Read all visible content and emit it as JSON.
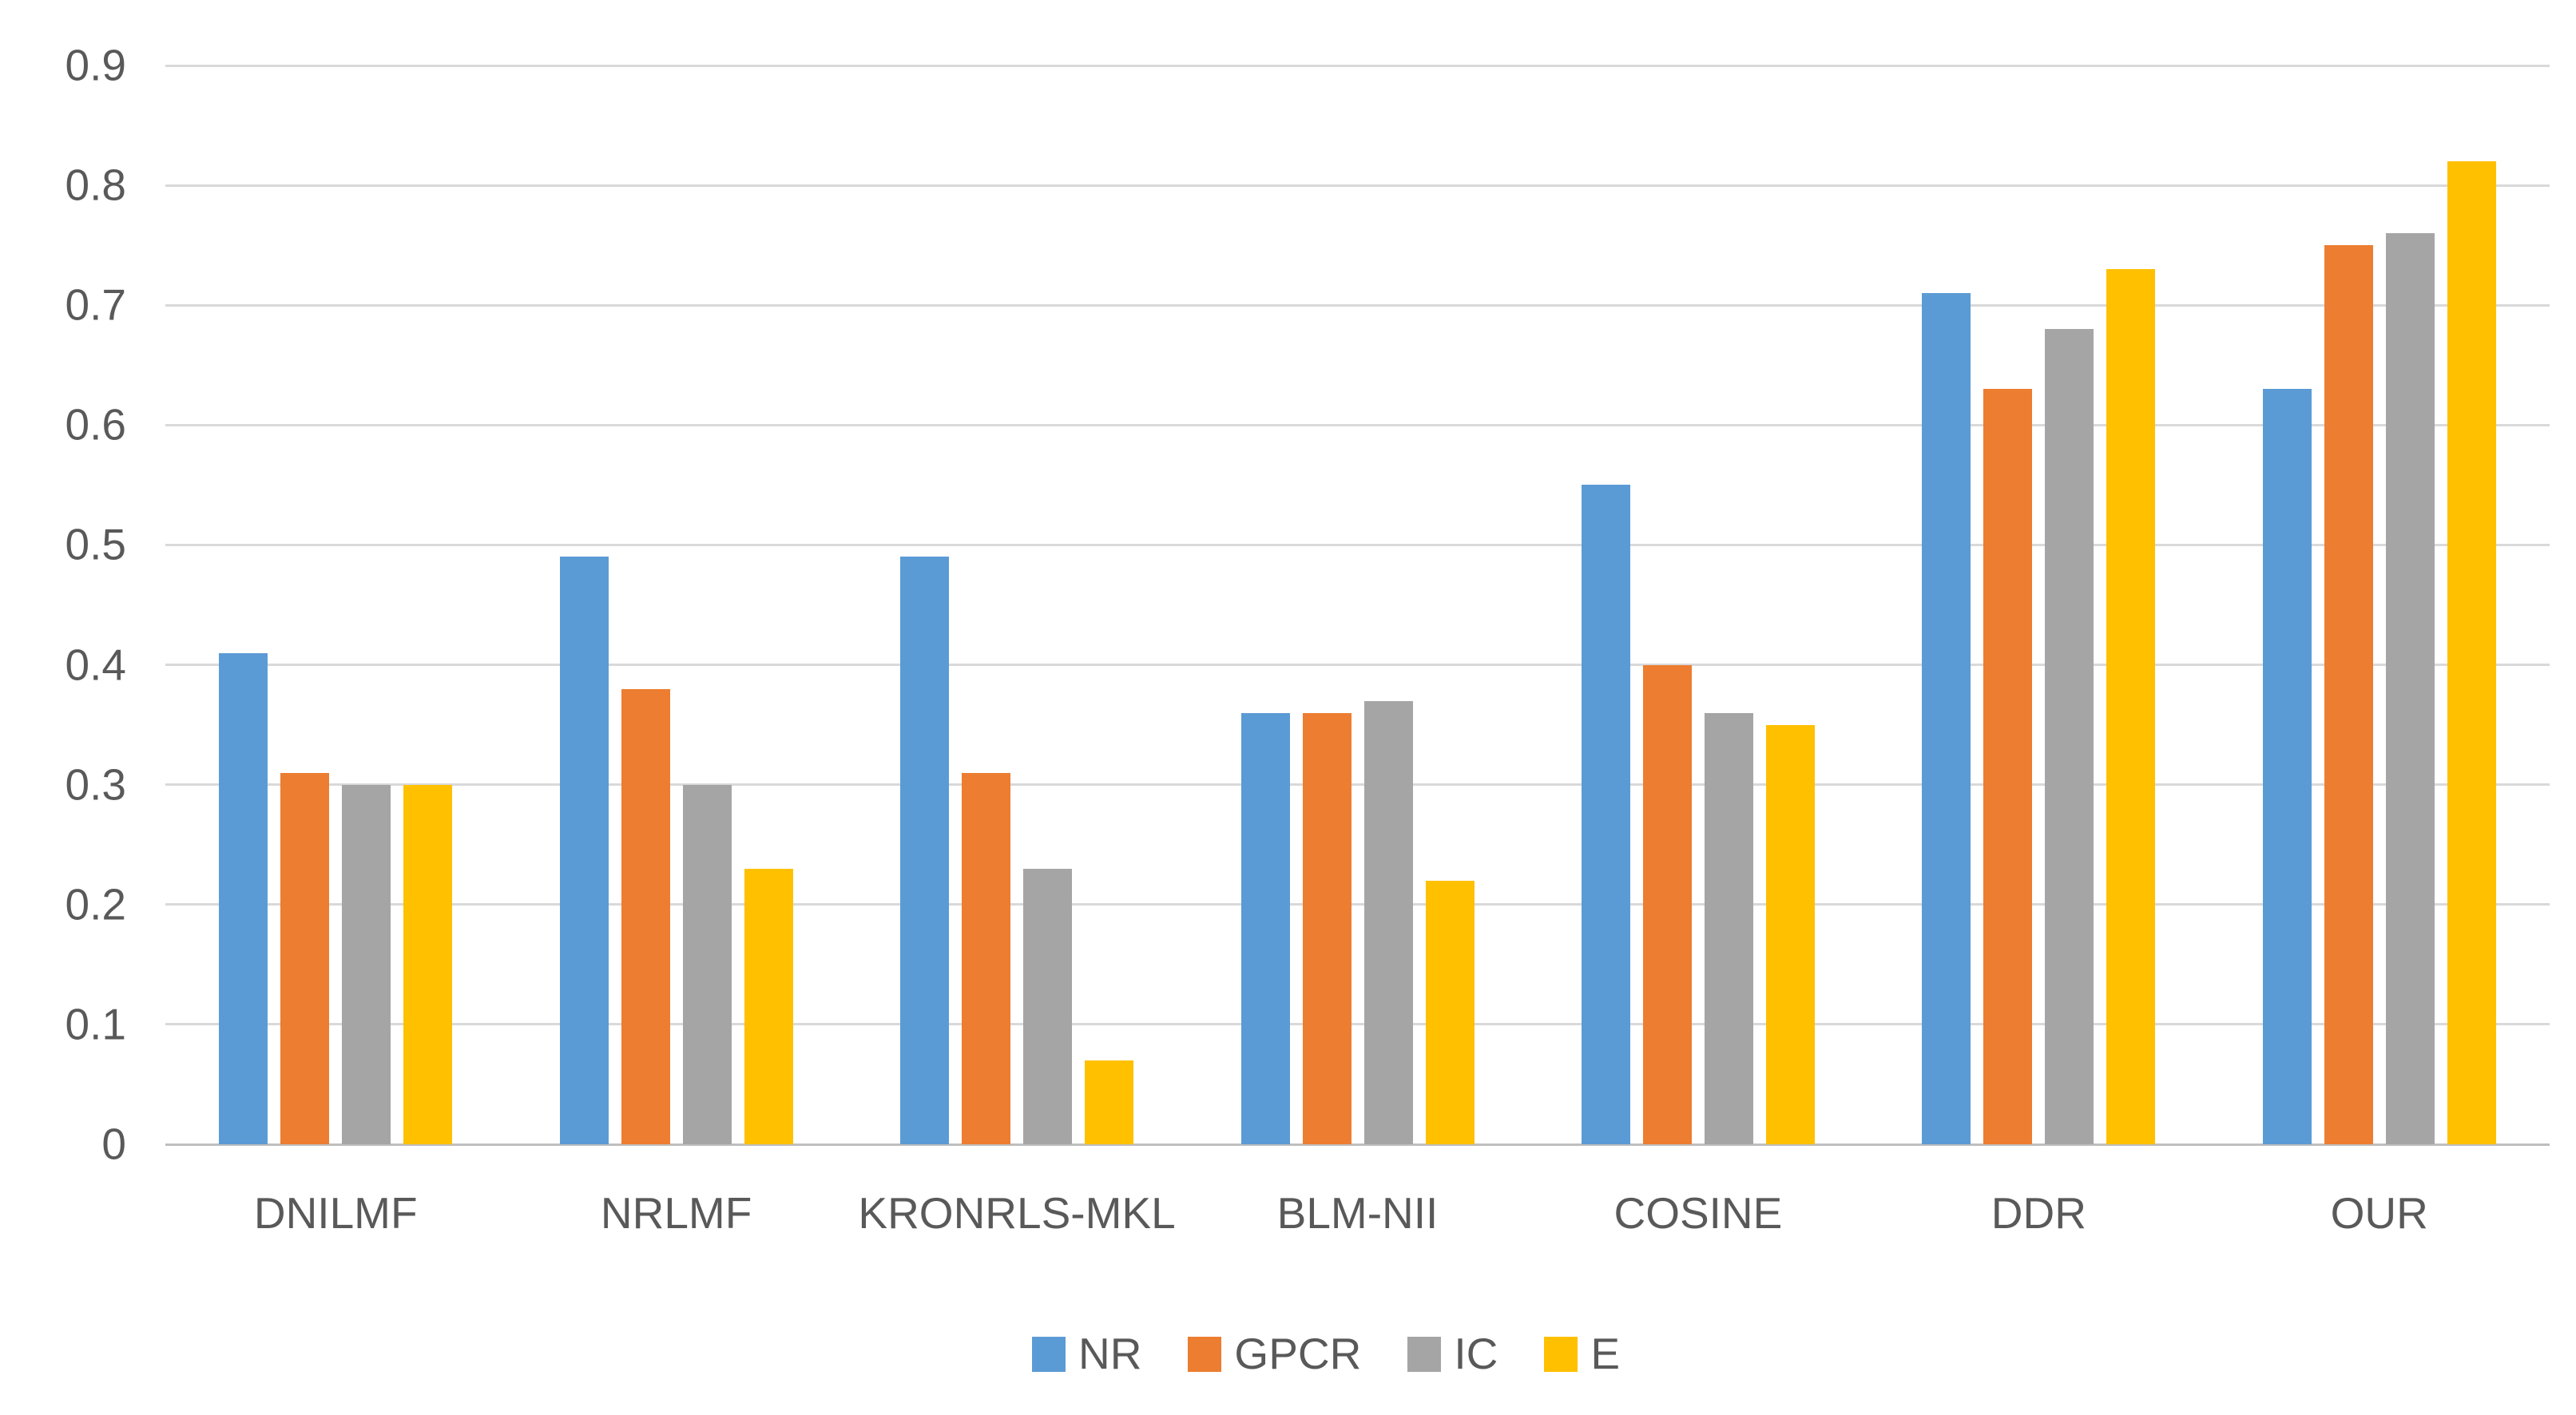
{
  "chart_data": {
    "type": "bar",
    "title": "",
    "xlabel": "",
    "ylabel": "",
    "categories": [
      "DNILMF",
      "NRLMF",
      "KRONRLS-MKL",
      "BLM-NII",
      "COSINE",
      "DDR",
      "OUR"
    ],
    "series": [
      {
        "name": "NR",
        "color": "#5B9BD5",
        "values": [
          0.41,
          0.49,
          0.49,
          0.36,
          0.55,
          0.71,
          0.63
        ]
      },
      {
        "name": "GPCR",
        "color": "#ED7D31",
        "values": [
          0.31,
          0.38,
          0.31,
          0.36,
          0.4,
          0.63,
          0.75
        ]
      },
      {
        "name": "IC",
        "color": "#A5A5A5",
        "values": [
          0.3,
          0.3,
          0.23,
          0.37,
          0.36,
          0.68,
          0.76
        ]
      },
      {
        "name": "E",
        "color": "#FFC000",
        "values": [
          0.3,
          0.23,
          0.07,
          0.22,
          0.35,
          0.73,
          0.82
        ]
      }
    ],
    "ylim": [
      0,
      0.9
    ],
    "yticks": [
      "0",
      "0.1",
      "0.2",
      "0.3",
      "0.4",
      "0.5",
      "0.6",
      "0.7",
      "0.8",
      "0.9"
    ],
    "grid": true,
    "legend_position": "bottom",
    "colors": {
      "gridline": "#d9d9d9",
      "axis_line": "#bfbfbf",
      "tick_text": "#595959"
    }
  }
}
